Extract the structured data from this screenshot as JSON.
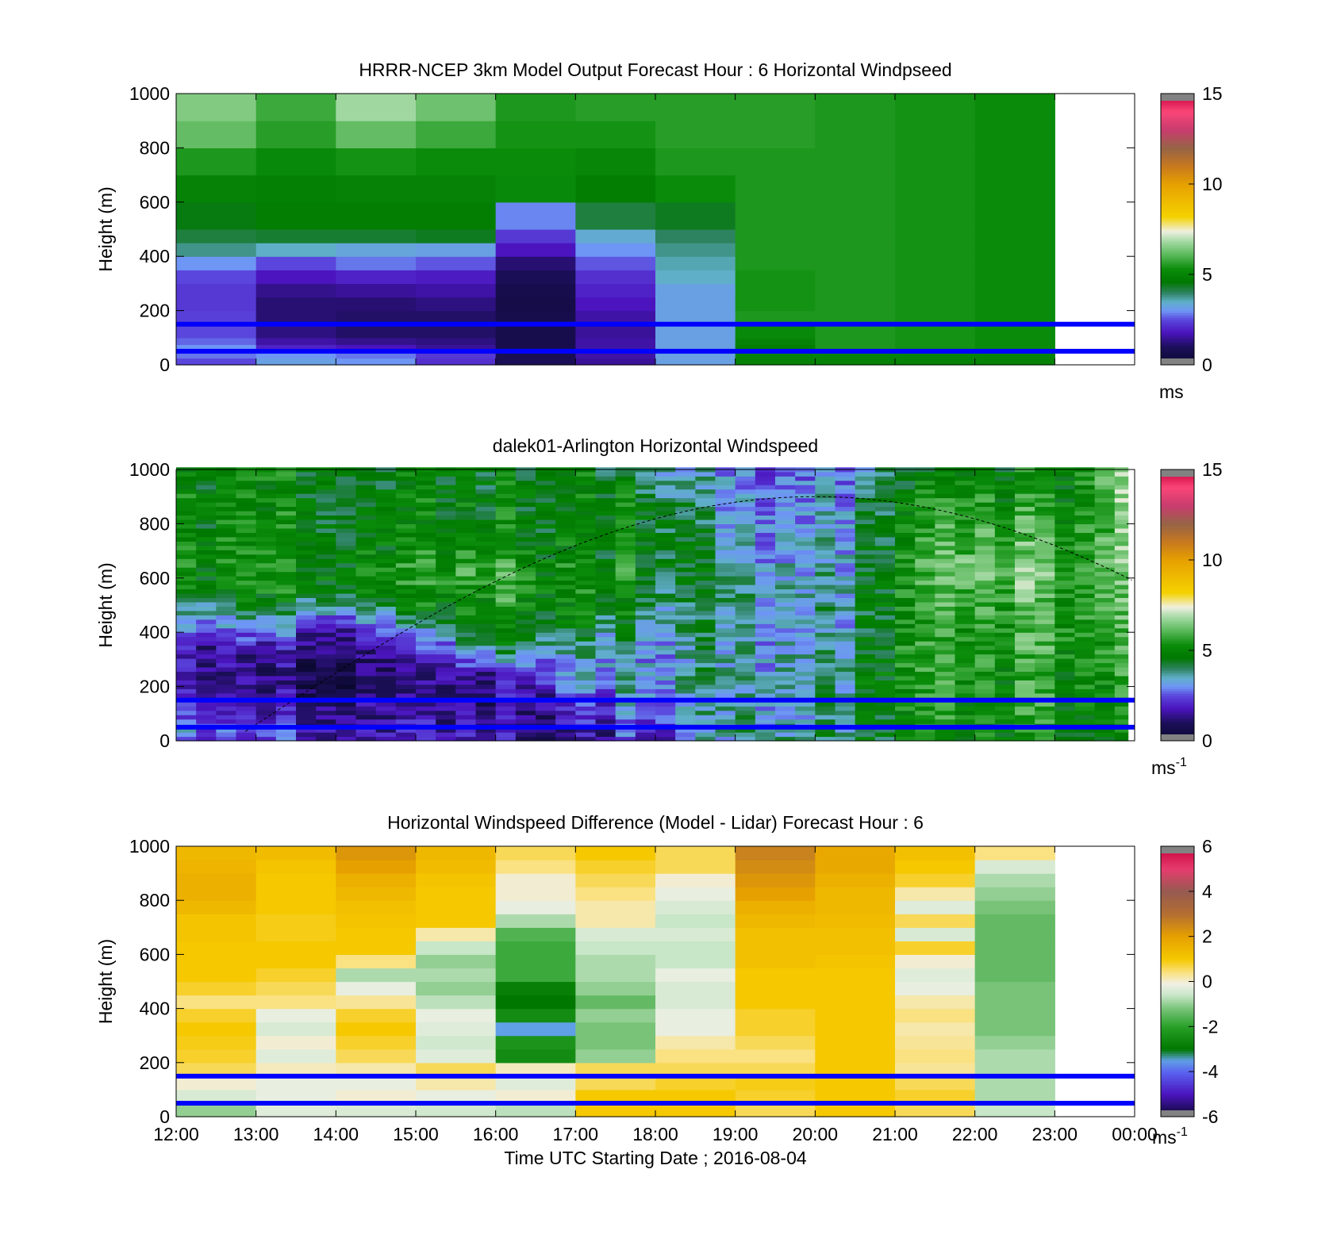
{
  "figure": {
    "xlabel": "Time UTC  Starting Date ; 2016-08-04",
    "x_ticks": [
      "12:00",
      "13:00",
      "14:00",
      "15:00",
      "16:00",
      "17:00",
      "18:00",
      "19:00",
      "20:00",
      "21:00",
      "22:00",
      "23:00",
      "00:00"
    ],
    "y_ticks": [
      "0",
      "200",
      "400",
      "600",
      "800",
      "1000"
    ],
    "ylabel": "Height (m)"
  },
  "chart_data": [
    {
      "type": "heatmap",
      "title": "HRRR-NCEP 3km Model Output   Forecast Hour : 6 Horizontal Windpseed",
      "xlabel": "",
      "ylabel": "Height (m)",
      "xlim": [
        "12:00",
        "00:00"
      ],
      "ylim": [
        0,
        1000
      ],
      "colorbar": {
        "ticks": [
          "0",
          "5",
          "10",
          "15"
        ],
        "range": [
          0,
          15
        ],
        "unit_label": "ms",
        "unit_superscript": "",
        "colormap": "windspeed"
      },
      "reference_lines_m": [
        150,
        50
      ],
      "times": [
        "12:00",
        "13:00",
        "14:00",
        "15:00",
        "16:00",
        "17:00",
        "18:00",
        "19:00",
        "20:00",
        "21:00",
        "22:00"
      ],
      "levels_m": [
        0,
        25,
        50,
        75,
        100,
        150,
        200,
        250,
        300,
        350,
        400,
        450,
        500,
        600,
        700,
        800,
        900
      ],
      "values": [
        [
          2.5,
          2.8,
          3.0,
          2.7,
          2.5,
          2.4,
          2.3,
          2.3,
          2.5,
          3.0,
          3.8,
          4.2,
          4.5,
          5.0,
          5.5,
          6.2,
          6.5
        ],
        [
          3.2,
          3.0,
          2.0,
          1.6,
          1.3,
          1.2,
          1.2,
          1.4,
          1.8,
          2.5,
          3.5,
          4.3,
          4.8,
          4.9,
          5.2,
          5.6,
          5.8
        ],
        [
          3.0,
          2.8,
          1.8,
          1.4,
          1.1,
          1.1,
          1.2,
          1.5,
          2.0,
          2.8,
          3.3,
          4.3,
          4.8,
          5.0,
          5.4,
          6.2,
          6.8
        ],
        [
          2.2,
          2.3,
          1.5,
          1.3,
          1.1,
          1.1,
          1.3,
          1.6,
          1.9,
          2.6,
          3.2,
          4.4,
          4.8,
          5.0,
          5.3,
          5.8,
          6.3
        ],
        [
          0.9,
          0.8,
          0.7,
          0.7,
          0.7,
          0.7,
          0.6,
          0.7,
          0.9,
          1.2,
          1.8,
          2.3,
          2.9,
          5.2,
          5.3,
          5.4,
          5.5
        ],
        [
          1.5,
          1.6,
          1.6,
          1.6,
          1.5,
          1.6,
          1.8,
          2.0,
          2.2,
          2.6,
          3.0,
          3.4,
          4.2,
          4.8,
          5.1,
          5.4,
          5.6
        ],
        [
          3.2,
          3.2,
          3.2,
          3.2,
          3.2,
          3.2,
          3.2,
          3.2,
          3.5,
          3.6,
          3.8,
          4.0,
          4.4,
          5.3,
          5.5,
          5.6,
          5.6
        ],
        [
          5.0,
          5.0,
          4.8,
          5.0,
          5.2,
          5.5,
          5.4,
          5.4,
          5.4,
          5.5,
          5.5,
          5.5,
          5.5,
          5.5,
          5.5,
          5.6,
          5.6
        ],
        [
          5.0,
          5.0,
          5.5,
          5.5,
          5.5,
          5.5,
          5.5,
          5.5,
          5.5,
          5.5,
          5.5,
          5.5,
          5.5,
          5.5,
          5.5,
          5.5,
          5.5
        ],
        [
          5.0,
          5.0,
          5.4,
          5.4,
          5.4,
          5.4,
          5.4,
          5.4,
          5.4,
          5.4,
          5.4,
          5.4,
          5.4,
          5.4,
          5.4,
          5.4,
          5.4
        ],
        [
          5.0,
          5.0,
          5.3,
          5.3,
          5.3,
          5.3,
          5.3,
          5.3,
          5.3,
          5.3,
          5.3,
          5.3,
          5.3,
          5.3,
          5.3,
          5.3,
          5.3
        ]
      ]
    },
    {
      "type": "heatmap",
      "title": "dalek01-Arlington  Horizontal Windspeed",
      "xlabel": "",
      "ylabel": "Height (m)",
      "xlim": [
        "12:00",
        "00:00"
      ],
      "ylim": [
        0,
        1000
      ],
      "colorbar": {
        "ticks": [
          "0",
          "5",
          "10",
          "15"
        ],
        "range": [
          0,
          15
        ],
        "unit_label": "ms",
        "unit_superscript": "-1",
        "colormap": "windspeed"
      },
      "reference_lines_m": [
        150,
        50
      ],
      "sun_curve": {
        "start": "12:52",
        "peak": "20:00",
        "peak_height_m": 900,
        "end": "23:59",
        "end_height_m": 590
      },
      "data_end": "23:55",
      "textured": true,
      "profiles_hourly": {
        "times": [
          "12:00",
          "13:00",
          "14:00",
          "15:00",
          "16:00",
          "17:00",
          "18:00",
          "19:00",
          "20:00",
          "21:00",
          "22:00",
          "23:00",
          "23:55"
        ],
        "levels_m": [
          0,
          50,
          100,
          150,
          200,
          250,
          300,
          350,
          400,
          450,
          500,
          550,
          600,
          650,
          700,
          800,
          900,
          1000
        ],
        "values": [
          [
            2.5,
            3.0,
            2.2,
            2.0,
            1.8,
            1.8,
            1.8,
            2.0,
            2.4,
            3.0,
            3.8,
            4.5,
            5.0,
            5.2,
            5.2,
            5.0,
            5.0,
            5.0
          ],
          [
            2.2,
            2.0,
            1.6,
            1.3,
            1.0,
            0.9,
            1.0,
            1.4,
            2.4,
            3.4,
            4.2,
            4.8,
            5.0,
            5.0,
            4.9,
            4.8,
            4.8,
            4.8
          ],
          [
            2.0,
            1.9,
            1.7,
            1.4,
            1.1,
            1.0,
            1.2,
            1.5,
            1.9,
            2.8,
            4.0,
            4.8,
            5.1,
            5.2,
            5.0,
            4.8,
            4.8,
            4.8
          ],
          [
            2.0,
            2.0,
            1.8,
            1.6,
            1.5,
            1.5,
            1.7,
            2.2,
            3.0,
            4.2,
            5.0,
            5.3,
            5.6,
            5.6,
            5.3,
            5.0,
            5.0,
            5.0
          ],
          [
            1.8,
            1.6,
            1.5,
            1.6,
            1.8,
            2.2,
            3.2,
            4.5,
            5.2,
            5.4,
            5.6,
            5.8,
            6.0,
            6.0,
            5.5,
            5.0,
            5.0,
            5.0
          ],
          [
            1.5,
            1.6,
            1.9,
            2.4,
            2.8,
            3.2,
            3.5,
            3.8,
            4.3,
            4.8,
            5.0,
            5.2,
            5.2,
            5.2,
            5.0,
            4.9,
            4.9,
            4.9
          ],
          [
            2.2,
            2.6,
            3.0,
            3.3,
            3.5,
            3.6,
            3.4,
            3.6,
            3.8,
            4.0,
            4.2,
            4.5,
            4.8,
            5.0,
            5.0,
            5.0,
            4.5,
            4.0
          ],
          [
            3.5,
            3.6,
            3.5,
            3.4,
            3.4,
            3.5,
            3.3,
            3.4,
            3.3,
            3.5,
            3.6,
            3.8,
            3.5,
            3.4,
            3.3,
            3.0,
            2.8,
            2.5
          ],
          [
            3.8,
            3.5,
            3.3,
            3.5,
            3.7,
            3.6,
            3.5,
            3.4,
            3.2,
            3.2,
            3.4,
            3.4,
            3.2,
            3.2,
            3.0,
            3.0,
            2.8,
            2.6
          ],
          [
            4.6,
            4.8,
            4.8,
            5.0,
            5.0,
            5.0,
            5.0,
            5.0,
            4.9,
            4.8,
            4.9,
            4.8,
            4.8,
            4.8,
            4.8,
            4.6,
            4.4,
            4.0
          ],
          [
            5.0,
            5.0,
            5.2,
            5.2,
            5.3,
            5.4,
            5.4,
            5.5,
            5.5,
            5.6,
            5.8,
            6.2,
            6.5,
            6.8,
            6.2,
            5.8,
            5.4,
            5.0
          ],
          [
            5.0,
            5.0,
            5.2,
            5.3,
            5.3,
            5.3,
            5.4,
            5.5,
            5.6,
            5.6,
            5.6,
            5.8,
            5.8,
            5.8,
            5.6,
            5.4,
            5.0,
            4.6
          ],
          [
            5.3,
            5.4,
            5.5,
            5.6,
            5.7,
            5.8,
            5.9,
            6.0,
            6.1,
            6.2,
            6.3,
            6.4,
            6.5,
            6.6,
            6.7,
            6.8,
            6.9,
            7.0
          ]
        ]
      }
    },
    {
      "type": "heatmap",
      "title": "Horizontal Windspeed Difference (Model - Lidar) Forecast Hour : 6",
      "xlabel": "Time UTC  Starting Date ; 2016-08-04",
      "ylabel": "Height (m)",
      "xlim": [
        "12:00",
        "00:00"
      ],
      "ylim": [
        0,
        1000
      ],
      "colorbar": {
        "ticks": [
          "-6",
          "-4",
          "-2",
          "0",
          "2",
          "4",
          "6"
        ],
        "range": [
          -6,
          6
        ],
        "unit_label": "ms",
        "unit_superscript": "-1",
        "colormap": "difference"
      },
      "reference_lines_m": [
        150,
        50
      ],
      "times": [
        "12:00",
        "13:00",
        "14:00",
        "15:00",
        "16:00",
        "17:00",
        "18:00",
        "19:00",
        "20:00",
        "21:00",
        "22:00"
      ],
      "levels_m": [
        0,
        50,
        100,
        150,
        200,
        250,
        300,
        350,
        400,
        450,
        500,
        550,
        600,
        650,
        700,
        750,
        800,
        850,
        900,
        950
      ],
      "values": [
        [
          -1.0,
          -0.4,
          0.0,
          0.6,
          0.8,
          0.9,
          1.0,
          0.8,
          0.4,
          0.8,
          1.0,
          1.0,
          1.0,
          1.1,
          1.1,
          1.4,
          1.6,
          1.6,
          1.5,
          1.4
        ],
        [
          -0.3,
          -0.2,
          -0.2,
          0.1,
          -0.3,
          0.0,
          -0.4,
          -0.2,
          0.4,
          0.6,
          0.8,
          1.0,
          1.0,
          0.9,
          0.9,
          1.0,
          1.0,
          1.0,
          1.1,
          1.3
        ],
        [
          -0.4,
          0.0,
          -0.2,
          0.2,
          0.6,
          0.8,
          1.0,
          0.8,
          0.3,
          -0.2,
          -0.8,
          0.4,
          1.0,
          1.0,
          1.1,
          1.2,
          1.4,
          1.6,
          2.0,
          2.2
        ],
        [
          -0.5,
          -0.2,
          0.2,
          0.6,
          -0.3,
          -0.5,
          -0.3,
          -0.2,
          -0.7,
          -1.0,
          -0.8,
          -1.0,
          -0.6,
          0.2,
          1.0,
          1.0,
          1.0,
          1.1,
          1.3,
          1.4
        ],
        [
          -0.7,
          0.0,
          -0.3,
          0.1,
          -2.5,
          -2.3,
          -3.5,
          -2.5,
          -3.0,
          -2.8,
          -1.8,
          -1.8,
          -1.8,
          -1.6,
          -0.8,
          -0.2,
          0.0,
          0.0,
          0.4,
          0.6
        ],
        [
          1.0,
          1.0,
          0.6,
          0.6,
          -1.0,
          -1.2,
          -1.2,
          -1.0,
          -1.4,
          -1.0,
          -0.8,
          -0.8,
          -0.6,
          -0.4,
          0.2,
          0.2,
          0.4,
          0.6,
          0.8,
          1.0
        ],
        [
          1.0,
          1.0,
          0.8,
          0.6,
          0.4,
          0.2,
          -0.2,
          -0.2,
          -0.4,
          -0.4,
          -0.2,
          -0.6,
          -0.6,
          -0.4,
          -0.6,
          -0.4,
          -0.2,
          0.0,
          0.6,
          0.6
        ],
        [
          0.6,
          0.8,
          0.9,
          0.6,
          0.4,
          0.6,
          0.8,
          0.8,
          1.0,
          1.0,
          1.0,
          1.2,
          1.2,
          1.2,
          1.4,
          1.6,
          2.0,
          2.2,
          2.4,
          2.6
        ],
        [
          1.0,
          1.0,
          1.0,
          1.0,
          1.0,
          1.0,
          1.0,
          1.0,
          1.0,
          1.0,
          1.0,
          1.1,
          1.2,
          1.2,
          1.3,
          1.4,
          1.4,
          1.6,
          1.8,
          1.8
        ],
        [
          0.6,
          0.8,
          0.6,
          0.3,
          0.4,
          0.3,
          0.2,
          0.4,
          0.2,
          -0.2,
          -0.3,
          0.0,
          0.8,
          -0.4,
          0.6,
          -0.3,
          0.2,
          0.8,
          1.0,
          1.2
        ],
        [
          -0.6,
          -0.8,
          -0.8,
          -0.8,
          -0.8,
          -1.0,
          -1.2,
          -1.2,
          -1.2,
          -1.2,
          -1.4,
          -1.4,
          -1.4,
          -1.4,
          -1.4,
          -1.2,
          -1.0,
          -0.8,
          -0.4,
          0.4
        ]
      ]
    }
  ]
}
